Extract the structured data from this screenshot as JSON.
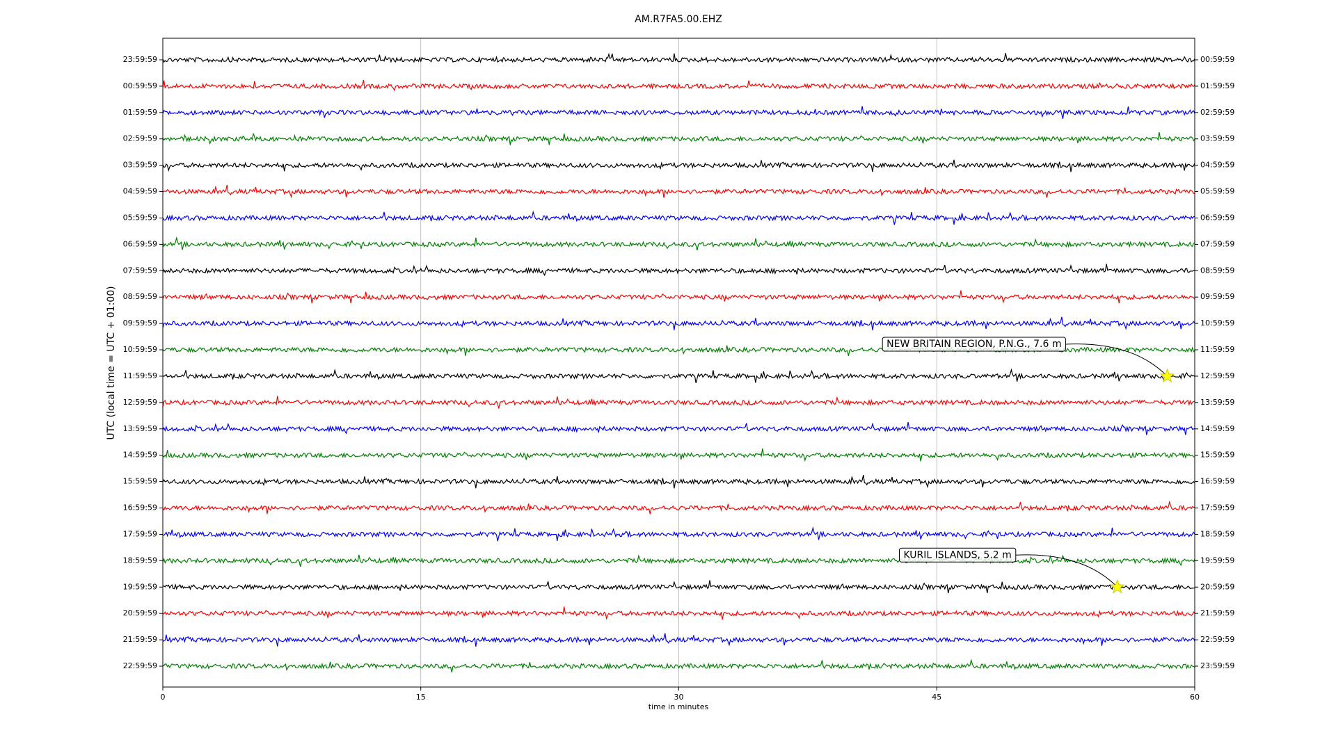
{
  "chart_data": {
    "type": "dayplot",
    "title": "AM.R7FA5.00.EHZ",
    "x_label": "time in minutes",
    "y_label": "UTC (local time = UTC + 01:00)",
    "xlim": [
      0,
      60
    ],
    "xticks": [
      0,
      15,
      30,
      45,
      60
    ],
    "grid": true,
    "colors": [
      "#000000",
      "#ff0000",
      "#0000ff",
      "#008000"
    ],
    "categories": [
      "23:59:59",
      "00:59:59",
      "01:59:59",
      "02:59:59",
      "03:59:59",
      "04:59:59",
      "05:59:59",
      "06:59:59",
      "07:59:59",
      "08:59:59",
      "09:59:59",
      "10:59:59",
      "11:59:59",
      "12:59:59",
      "13:59:59",
      "14:59:59",
      "15:59:59",
      "16:59:59",
      "17:59:59",
      "18:59:59",
      "19:59:59",
      "20:59:59",
      "21:59:59",
      "22:59:59"
    ],
    "right_labels": [
      "00:59:59",
      "01:59:59",
      "02:59:59",
      "03:59:59",
      "04:59:59",
      "05:59:59",
      "06:59:59",
      "07:59:59",
      "08:59:59",
      "09:59:59",
      "10:59:59",
      "11:59:59",
      "12:59:59",
      "13:59:59",
      "14:59:59",
      "15:59:59",
      "16:59:59",
      "17:59:59",
      "18:59:59",
      "19:59:59",
      "20:59:59",
      "21:59:59",
      "22:59:59",
      "23:59:59"
    ],
    "events": [
      {
        "label": "NEW BRITAIN REGION, P.N.G., 7.6 m",
        "x": 58.4,
        "row": 12
      },
      {
        "label": "KURIL ISLANDS, 5.2 m",
        "x": 55.5,
        "row": 20
      }
    ]
  }
}
